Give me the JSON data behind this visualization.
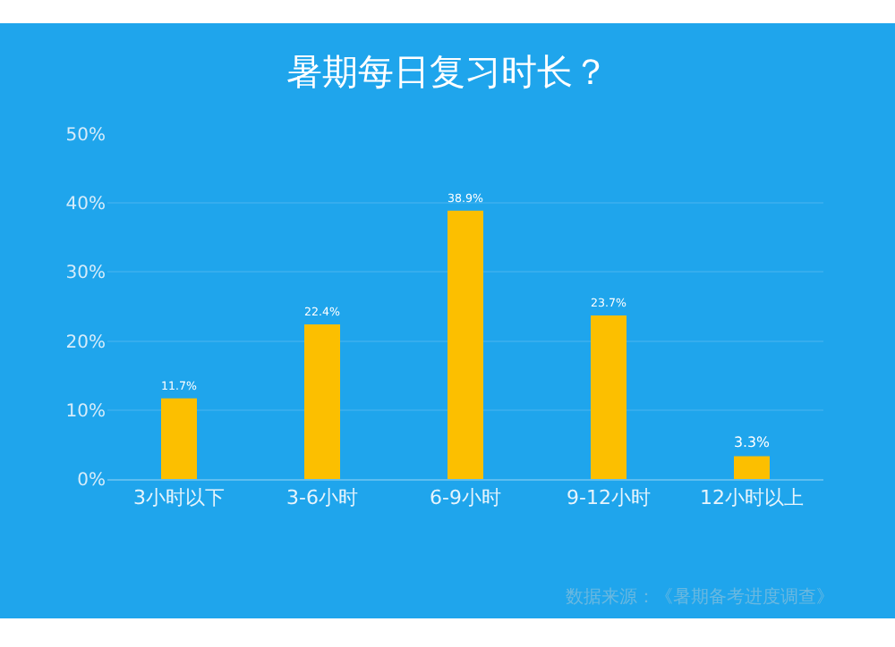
{
  "chart_data": {
    "type": "bar",
    "title": "暑期每日复习时长？",
    "categories": [
      "3小时以下",
      "3-6小时",
      "6-9小时",
      "9-12小时",
      "12小时以上"
    ],
    "values": [
      11.7,
      22.4,
      38.9,
      23.7,
      3.3
    ],
    "value_labels": [
      "11.7%",
      "22.4%",
      "38.9%",
      "23.7%",
      "3.3%"
    ],
    "color": "#fcbf00",
    "ylim": [
      0,
      50
    ],
    "yticks": [
      {
        "value": 0,
        "label": "0%"
      },
      {
        "value": 10,
        "label": "10%"
      },
      {
        "value": 20,
        "label": "20%"
      },
      {
        "value": 30,
        "label": "30%"
      },
      {
        "value": 40,
        "label": "40%"
      },
      {
        "value": 50,
        "label": "50%"
      }
    ],
    "grid": "y",
    "annotations": [
      "数据来源：《暑期备考进度调查》"
    ]
  }
}
